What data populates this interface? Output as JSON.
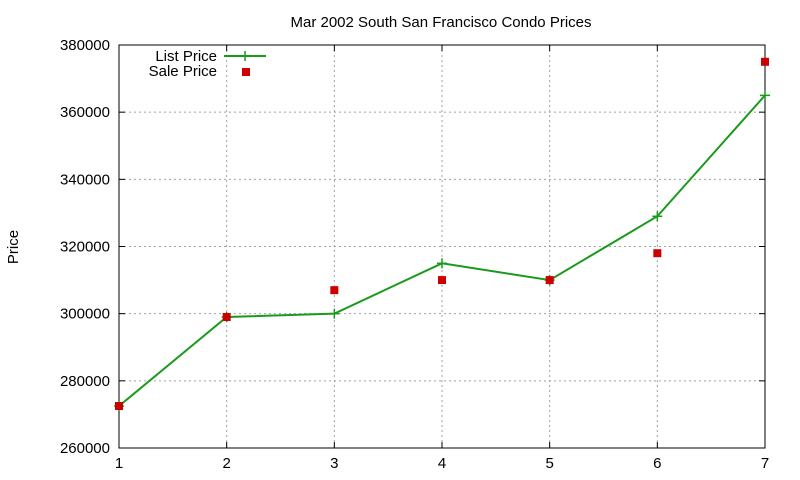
{
  "chart_data": {
    "type": "line",
    "title": "Mar 2002 South San Francisco Condo Prices",
    "xlabel": "",
    "ylabel": "Price",
    "x": [
      1,
      2,
      3,
      4,
      5,
      6,
      7
    ],
    "xlim": [
      1,
      7
    ],
    "ylim": [
      260000,
      380000
    ],
    "x_ticks": [
      "1",
      "2",
      "3",
      "4",
      "5",
      "6",
      "7"
    ],
    "y_ticks": [
      "260000",
      "280000",
      "300000",
      "320000",
      "340000",
      "360000",
      "380000"
    ],
    "grid": true,
    "legend_position": "top-left",
    "series": [
      {
        "name": "List Price",
        "style": "line-with-plus-markers",
        "color": "#1a9a1a",
        "values": [
          272500,
          299000,
          300000,
          315000,
          310000,
          329000,
          365000
        ]
      },
      {
        "name": "Sale Price",
        "style": "square-markers",
        "color": "#cc0000",
        "values": [
          272500,
          299000,
          307000,
          310000,
          310000,
          318000,
          375000
        ]
      }
    ]
  }
}
